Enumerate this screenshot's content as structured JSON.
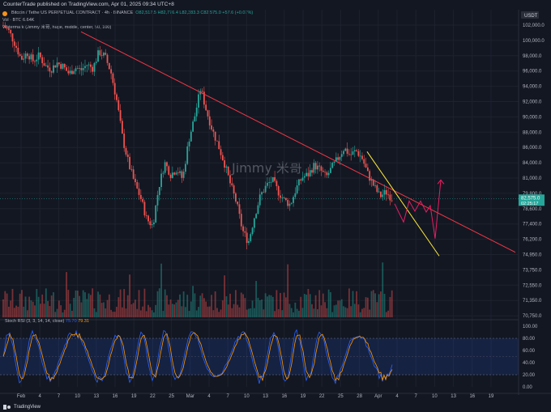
{
  "header": {
    "publish_line": "CounterTrade published on TradingView.com, Apr 01, 2025 09:34 UTC+8"
  },
  "legend": {
    "symbol": "Bitcoin / TetherUS PERPETUAL CONTRACT · 4h · BINANCE",
    "ohlc": "O82,517.5 H82,776.4 L82,383.3 C82,575.0 +57.6 (+0.07%)",
    "volume": "Vol 6.64K +57.6 (+0.07%)",
    "vol_line": "Vol · BTC 6.64K",
    "watermark_line": "Watermark (Jimmy 米哥, huge, middle, center, 50, 100)"
  },
  "watermark_text": "Jimmy 米哥",
  "currency_badge": "USDT",
  "price_axis": {
    "labels": [
      "102,000.0",
      "100,000.0",
      "98,000.0",
      "96,000.0",
      "94,000.0",
      "92,000.0",
      "90,000.0",
      "88,000.0",
      "86,000.0",
      "84,000.0",
      "81,000.0",
      "79,800.0",
      "78,600.0",
      "77,400.0",
      "76,200.0",
      "74,950.0",
      "73,750.0",
      "72,550.0",
      "71,350.0",
      "70,750.0"
    ],
    "current_price": "82,575.0",
    "countdown": "02:25:17"
  },
  "rsi": {
    "legend_title": "Stoch RSI (3, 3, 14, 14, close)",
    "k_value": "75.70",
    "d_value": "79.31",
    "axis_labels": [
      "100.00",
      "80.00",
      "60.00",
      "40.00",
      "20.00",
      "0.00"
    ]
  },
  "time_axis": {
    "labels": [
      "Feb",
      "4",
      "7",
      "10",
      "13",
      "16",
      "19",
      "22",
      "25",
      "Mar",
      "4",
      "7",
      "10",
      "13",
      "16",
      "19",
      "22",
      "25",
      "28",
      "Apr",
      "4",
      "7",
      "10",
      "13",
      "16",
      "19"
    ]
  },
  "footer": {
    "brand": "TradingView"
  },
  "colors": {
    "background": "#131722",
    "up": "#26a69a",
    "down": "#ef5350",
    "trendline": "#f23645",
    "yellow_line": "#ffeb3b",
    "projection": "#e91e63",
    "rsi_k": "#2962ff",
    "rsi_d": "#ff9800",
    "rsi_band": "#2962ff"
  },
  "chart_data": {
    "type": "candlestick",
    "title": "Bitcoin / TetherUS PERPETUAL CONTRACT · 4h · BINANCE",
    "ylim": [
      69600,
      103200
    ],
    "price_series_approx": [
      101500,
      100800,
      99400,
      97800,
      98500,
      97600,
      98200,
      97100,
      96700,
      97400,
      97000,
      96200,
      96900,
      96600,
      97200,
      96800,
      98600,
      98100,
      96400,
      93200,
      89000,
      86300,
      84200,
      82600,
      80300,
      79600,
      83800,
      86500,
      85200,
      85800,
      84700,
      88900,
      91500,
      94600,
      92100,
      90000,
      88300,
      86400,
      84100,
      82100,
      79100,
      77800,
      80600,
      82900,
      84000,
      84600,
      83300,
      82400,
      81900,
      83700,
      84900,
      85200,
      86200,
      85700,
      84900,
      86000,
      87000,
      88100,
      87300,
      87800,
      87000,
      85200,
      83900,
      82800,
      83300,
      82600
    ],
    "projection_path": [
      [
        84000,
        82000
      ],
      [
        84500,
        80000
      ],
      [
        84800,
        82300
      ],
      [
        85100,
        81200
      ],
      [
        85400,
        82300
      ],
      [
        85700,
        81100
      ],
      [
        86000,
        81800
      ],
      [
        86200,
        78200
      ],
      [
        86600,
        84600
      ]
    ],
    "trendline": {
      "from": [
        100800,
        "Feb 3"
      ],
      "to": [
        76700,
        "Apr 14"
      ]
    },
    "yellow_line": {
      "from": [
        87700,
        "Mar 27"
      ],
      "to": [
        76300,
        "Apr 8"
      ]
    }
  }
}
